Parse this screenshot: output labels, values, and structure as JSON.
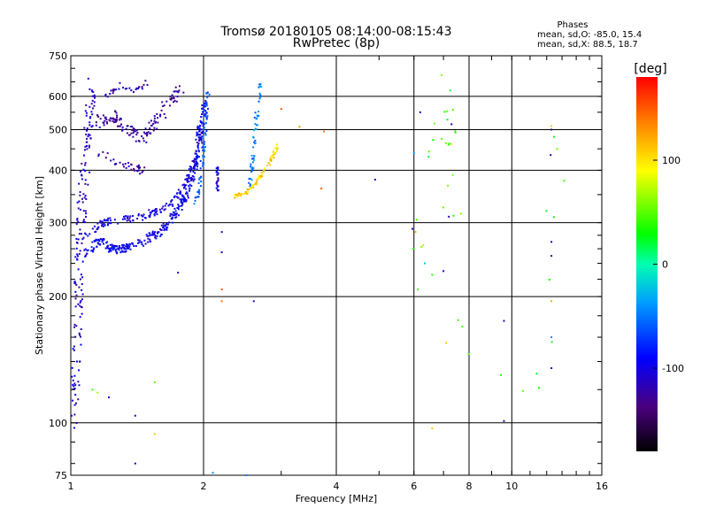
{
  "chart_data": {
    "type": "scatter",
    "title": "Tromsø 20180105 08:14:00-08:15:43",
    "subtitle": "RwPretec (8p)",
    "xlabel": "Frequency [MHz]",
    "ylabel": "Stationary phase Virtual Height [km]",
    "x_scale": "log",
    "y_scale": "log",
    "xlim": [
      1,
      16
    ],
    "ylim": [
      75,
      750
    ],
    "x_ticks": [
      1,
      2,
      4,
      6,
      8,
      10,
      16
    ],
    "x_tick_labels": [
      "1",
      "2",
      "4",
      "6",
      "8",
      "10",
      "16"
    ],
    "y_ticks": [
      75,
      100,
      200,
      300,
      400,
      500,
      600,
      750
    ],
    "y_tick_labels": [
      "75",
      "100",
      "200",
      "300",
      "400",
      "500",
      "600",
      "750"
    ],
    "grid": true,
    "legend": {
      "heading": "Phases",
      "lines": [
        "mean, sd,O: -85.0, 15.4",
        "mean, sd,X: 88.5, 18.7"
      ]
    },
    "colorbar": {
      "label": "[deg]",
      "range": [
        -180,
        180
      ],
      "ticks": [
        100,
        0,
        -100
      ],
      "tick_labels": [
        "100",
        "0",
        "-100"
      ]
    },
    "traces": [
      {
        "points": [
          [
            1.08,
            250
          ],
          [
            1.15,
            275
          ],
          [
            1.22,
            262
          ],
          [
            1.28,
            258
          ],
          [
            1.35,
            262
          ],
          [
            1.45,
            270
          ],
          [
            1.55,
            280
          ],
          [
            1.65,
            295
          ],
          [
            1.75,
            320
          ],
          [
            1.83,
            350
          ],
          [
            1.9,
            390
          ],
          [
            1.95,
            440
          ],
          [
            1.99,
            520
          ],
          [
            2.02,
            600
          ]
        ],
        "phase": -95,
        "spread": 0.045,
        "n": 320
      },
      {
        "points": [
          [
            1.08,
            278
          ],
          [
            1.18,
            300
          ],
          [
            1.3,
            305
          ],
          [
            1.45,
            310
          ],
          [
            1.6,
            322
          ],
          [
            1.75,
            345
          ],
          [
            1.87,
            390
          ],
          [
            1.93,
            450
          ],
          [
            1.96,
            520
          ]
        ],
        "phase": -100,
        "spread": 0.04,
        "n": 180
      },
      {
        "points": [
          [
            1.92,
            330
          ],
          [
            1.97,
            380
          ],
          [
            2.0,
            450
          ],
          [
            2.02,
            530
          ],
          [
            2.05,
            620
          ]
        ],
        "phase": -60,
        "spread": 0.03,
        "n": 70
      },
      {
        "points": [
          [
            2.15,
            355
          ],
          [
            2.15,
            410
          ]
        ],
        "phase": -105,
        "spread": 0.02,
        "n": 25
      },
      {
        "points": [
          [
            2.35,
            345
          ],
          [
            2.5,
            355
          ],
          [
            2.65,
            375
          ],
          [
            2.8,
            410
          ],
          [
            2.95,
            460
          ]
        ],
        "phase": 105,
        "spread": 0.025,
        "n": 90
      },
      {
        "points": [
          [
            2.55,
            365
          ],
          [
            2.58,
            420
          ],
          [
            2.62,
            500
          ],
          [
            2.66,
            580
          ],
          [
            2.7,
            640
          ]
        ],
        "phase": -45,
        "spread": 0.03,
        "n": 55
      },
      {
        "points": [
          [
            1.01,
            95
          ],
          [
            1.03,
            150
          ],
          [
            1.04,
            200
          ],
          [
            1.05,
            260
          ],
          [
            1.06,
            330
          ],
          [
            1.08,
            420
          ],
          [
            1.1,
            520
          ],
          [
            1.12,
            640
          ]
        ],
        "phase": -110,
        "spread": 0.08,
        "n": 170
      },
      {
        "points": [
          [
            1.15,
            520
          ],
          [
            1.25,
            540
          ],
          [
            1.35,
            500
          ],
          [
            1.45,
            470
          ],
          [
            1.55,
            520
          ],
          [
            1.7,
            600
          ],
          [
            1.78,
            625
          ]
        ],
        "phase": -125,
        "spread": 0.07,
        "n": 130
      },
      {
        "points": [
          [
            1.15,
            440
          ],
          [
            1.25,
            425
          ],
          [
            1.35,
            410
          ],
          [
            1.45,
            400
          ]
        ],
        "phase": -120,
        "spread": 0.05,
        "n": 35
      },
      {
        "points": [
          [
            1.2,
            600
          ],
          [
            1.3,
            640
          ],
          [
            1.4,
            620
          ],
          [
            1.5,
            650
          ]
        ],
        "phase": -115,
        "spread": 0.03,
        "n": 30
      },
      {
        "points": [
          [
            6.3,
            380
          ],
          [
            6.4,
            200
          ],
          [
            6.7,
            620
          ],
          [
            6.9,
            400
          ],
          [
            7.1,
            510
          ],
          [
            7.3,
            300
          ],
          [
            7.2,
            160
          ],
          [
            12.2,
            120
          ],
          [
            12.3,
            380
          ],
          [
            12.3,
            600
          ]
        ],
        "phase": 40,
        "spread": 0.25,
        "n": 40
      }
    ],
    "scatter_points": [
      {
        "x": 1.75,
        "y": 228,
        "phase": -110
      },
      {
        "x": 2.2,
        "y": 285,
        "phase": -105
      },
      {
        "x": 2.2,
        "y": 255,
        "phase": -120
      },
      {
        "x": 2.2,
        "y": 208,
        "phase": 150
      },
      {
        "x": 2.2,
        "y": 195,
        "phase": 140
      },
      {
        "x": 2.6,
        "y": 195,
        "phase": -120
      },
      {
        "x": 2.5,
        "y": 75,
        "phase": -50
      },
      {
        "x": 2.1,
        "y": 76,
        "phase": -40
      },
      {
        "x": 1.4,
        "y": 80,
        "phase": -110
      },
      {
        "x": 1.55,
        "y": 94,
        "phase": 110
      },
      {
        "x": 1.4,
        "y": 104,
        "phase": -115
      },
      {
        "x": 1.22,
        "y": 115,
        "phase": -110
      },
      {
        "x": 1.15,
        "y": 118,
        "phase": 70
      },
      {
        "x": 1.12,
        "y": 120,
        "phase": 40
      },
      {
        "x": 1.55,
        "y": 125,
        "phase": 50
      },
      {
        "x": 3.7,
        "y": 362,
        "phase": 150
      },
      {
        "x": 4.9,
        "y": 380,
        "phase": -110
      },
      {
        "x": 3.75,
        "y": 495,
        "phase": 140
      },
      {
        "x": 3.3,
        "y": 508,
        "phase": 130
      },
      {
        "x": 3.0,
        "y": 560,
        "phase": 150
      },
      {
        "x": 5.95,
        "y": 290,
        "phase": -110
      },
      {
        "x": 6.05,
        "y": 285,
        "phase": 120
      },
      {
        "x": 6.0,
        "y": 440,
        "phase": -40
      },
      {
        "x": 6.2,
        "y": 550,
        "phase": -110
      },
      {
        "x": 6.3,
        "y": 265,
        "phase": 110
      },
      {
        "x": 6.35,
        "y": 240,
        "phase": -20
      },
      {
        "x": 6.6,
        "y": 97,
        "phase": 110
      },
      {
        "x": 7.0,
        "y": 230,
        "phase": -110
      },
      {
        "x": 7.2,
        "y": 310,
        "phase": -120
      },
      {
        "x": 7.3,
        "y": 462,
        "phase": 100
      },
      {
        "x": 7.3,
        "y": 515,
        "phase": -115
      },
      {
        "x": 7.1,
        "y": 155,
        "phase": 110
      },
      {
        "x": 9.6,
        "y": 175,
        "phase": -115
      },
      {
        "x": 9.6,
        "y": 101,
        "phase": -130
      },
      {
        "x": 12.3,
        "y": 510,
        "phase": 110
      },
      {
        "x": 12.3,
        "y": 500,
        "phase": -110
      },
      {
        "x": 12.25,
        "y": 435,
        "phase": -110
      },
      {
        "x": 12.3,
        "y": 270,
        "phase": -110
      },
      {
        "x": 12.3,
        "y": 250,
        "phase": -130
      },
      {
        "x": 12.3,
        "y": 195,
        "phase": 120
      },
      {
        "x": 12.3,
        "y": 160,
        "phase": -40
      },
      {
        "x": 12.3,
        "y": 135,
        "phase": -110
      }
    ]
  }
}
